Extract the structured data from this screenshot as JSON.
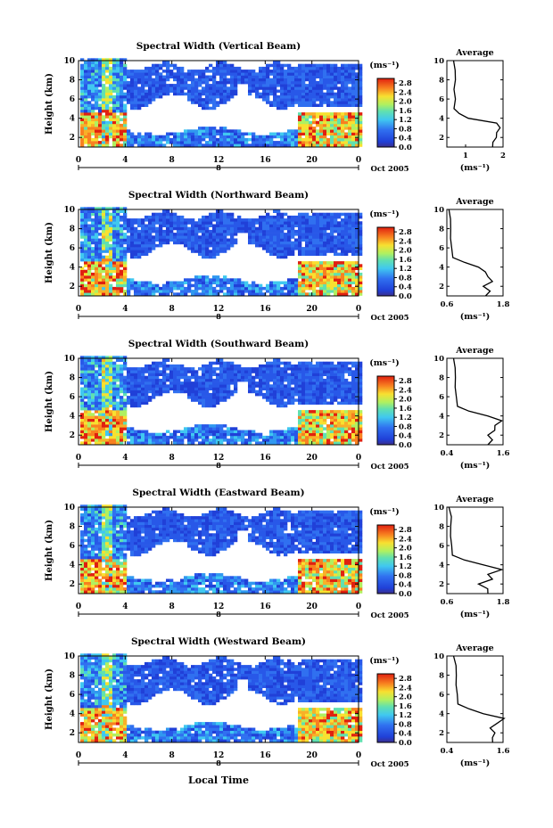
{
  "figure": {
    "x_axis_label": "Local Time",
    "date_label": "Oct 2005",
    "colorbar_unit": "(ms⁻¹)",
    "colorbar_ticks": [
      "2.8",
      "2.4",
      "2.0",
      "1.6",
      "1.2",
      "0.8",
      "0.4",
      "0.0"
    ],
    "side_title": "Average",
    "side_xlabel": "(ms⁻¹)"
  },
  "chart_data": [
    {
      "type": "heatmap",
      "title": "Spectral Width (Vertical Beam)",
      "ylabel": "Height (km)",
      "xlim": [
        0,
        24
      ],
      "ylim": [
        1,
        10
      ],
      "xticks": [
        "0",
        "4",
        "8",
        "12",
        "16",
        "20",
        "0"
      ],
      "yticks": [
        "2",
        "4",
        "6",
        "8",
        "10"
      ],
      "day_marker": "8",
      "colorbar": {
        "min": 0.0,
        "max": 3.0,
        "ticks": [
          2.8,
          2.4,
          2.0,
          1.6,
          1.2,
          0.8,
          0.4,
          0.0
        ]
      },
      "average_profile": {
        "xlim": [
          0.5,
          2.0
        ],
        "xticks": [
          "1",
          "2"
        ],
        "height_km": [
          1.0,
          1.5,
          2.0,
          2.5,
          3.0,
          3.5,
          4.0,
          4.5,
          5.0,
          6.0,
          7.0,
          8.0,
          9.0,
          10.0
        ],
        "width_ms": [
          1.75,
          1.7,
          1.85,
          1.8,
          1.95,
          1.8,
          1.1,
          0.8,
          0.72,
          0.7,
          0.72,
          0.7,
          0.75,
          0.65
        ]
      }
    },
    {
      "type": "heatmap",
      "title": "Spectral Width (Northward Beam)",
      "ylabel": "Height (km)",
      "xlim": [
        0,
        24
      ],
      "ylim": [
        1,
        10
      ],
      "xticks": [
        "0",
        "4",
        "8",
        "12",
        "16",
        "20",
        "0"
      ],
      "yticks": [
        "2",
        "4",
        "6",
        "8",
        "10"
      ],
      "day_marker": "8",
      "colorbar": {
        "min": 0.0,
        "max": 3.0,
        "ticks": [
          2.8,
          2.4,
          2.0,
          1.6,
          1.2,
          0.8,
          0.4,
          0.0
        ]
      },
      "average_profile": {
        "xlim": [
          0.6,
          1.8
        ],
        "xticks": [
          "0.6",
          "1.8"
        ],
        "height_km": [
          1.0,
          1.5,
          2.0,
          2.5,
          3.0,
          3.5,
          4.0,
          4.5,
          5.0,
          6.0,
          7.0,
          8.0,
          9.0,
          10.0
        ],
        "width_ms": [
          1.45,
          1.5,
          1.4,
          1.55,
          1.5,
          1.4,
          1.3,
          0.95,
          0.75,
          0.68,
          0.7,
          0.66,
          0.7,
          0.62
        ]
      }
    },
    {
      "type": "heatmap",
      "title": "Spectral Width (Southward Beam)",
      "ylabel": "Height (km)",
      "xlim": [
        0,
        24
      ],
      "ylim": [
        1,
        10
      ],
      "xticks": [
        "0",
        "4",
        "8",
        "12",
        "16",
        "20",
        "0"
      ],
      "yticks": [
        "2",
        "4",
        "6",
        "8",
        "10"
      ],
      "day_marker": "8",
      "colorbar": {
        "min": 0.0,
        "max": 3.0,
        "ticks": [
          2.8,
          2.4,
          2.0,
          1.6,
          1.2,
          0.8,
          0.4,
          0.0
        ]
      },
      "average_profile": {
        "xlim": [
          0.4,
          1.6
        ],
        "xticks": [
          "0.4",
          "1.6"
        ],
        "height_km": [
          1.0,
          1.5,
          2.0,
          2.5,
          3.0,
          3.5,
          4.0,
          4.5,
          5.0,
          6.0,
          7.0,
          8.0,
          9.0,
          10.0
        ],
        "width_ms": [
          1.3,
          1.35,
          1.3,
          1.4,
          1.45,
          1.55,
          1.3,
          0.85,
          0.65,
          0.58,
          0.6,
          0.56,
          0.6,
          0.52
        ]
      }
    },
    {
      "type": "heatmap",
      "title": "Spectral Width (Eastward Beam)",
      "ylabel": "Height (km)",
      "xlim": [
        0,
        24
      ],
      "ylim": [
        1,
        10
      ],
      "xticks": [
        "0",
        "4",
        "8",
        "12",
        "16",
        "20",
        "0"
      ],
      "yticks": [
        "2",
        "4",
        "6",
        "8",
        "10"
      ],
      "day_marker": "8",
      "colorbar": {
        "min": 0.0,
        "max": 3.0,
        "ticks": [
          2.8,
          2.4,
          2.0,
          1.6,
          1.2,
          0.8,
          0.4,
          0.0
        ]
      },
      "average_profile": {
        "xlim": [
          0.6,
          1.8
        ],
        "xticks": [
          "0.6",
          "1.8"
        ],
        "height_km": [
          1.0,
          1.5,
          2.0,
          2.5,
          3.0,
          3.5,
          4.0,
          4.5,
          5.0,
          6.0,
          7.0,
          8.0,
          9.0,
          10.0
        ],
        "width_ms": [
          1.5,
          1.45,
          1.3,
          1.55,
          1.5,
          1.75,
          1.4,
          0.95,
          0.74,
          0.68,
          0.7,
          0.66,
          0.72,
          0.62
        ]
      }
    },
    {
      "type": "heatmap",
      "title": "Spectral Width (Westward Beam)",
      "ylabel": "Height (km)",
      "xlim": [
        0,
        24
      ],
      "ylim": [
        1,
        10
      ],
      "xticks": [
        "0",
        "4",
        "8",
        "12",
        "16",
        "20",
        "0"
      ],
      "yticks": [
        "2",
        "4",
        "6",
        "8",
        "10"
      ],
      "day_marker": "8",
      "colorbar": {
        "min": 0.0,
        "max": 3.0,
        "ticks": [
          2.8,
          2.4,
          2.0,
          1.6,
          1.2,
          0.8,
          0.4,
          0.0
        ]
      },
      "average_profile": {
        "xlim": [
          0.4,
          1.6
        ],
        "xticks": [
          "0.4",
          "1.6"
        ],
        "height_km": [
          1.0,
          1.5,
          2.0,
          2.5,
          3.0,
          3.5,
          4.0,
          4.5,
          5.0,
          6.0,
          7.0,
          8.0,
          9.0,
          10.0
        ],
        "width_ms": [
          1.4,
          1.35,
          1.45,
          1.3,
          1.5,
          1.6,
          1.2,
          0.85,
          0.66,
          0.6,
          0.62,
          0.58,
          0.62,
          0.52
        ]
      }
    }
  ]
}
